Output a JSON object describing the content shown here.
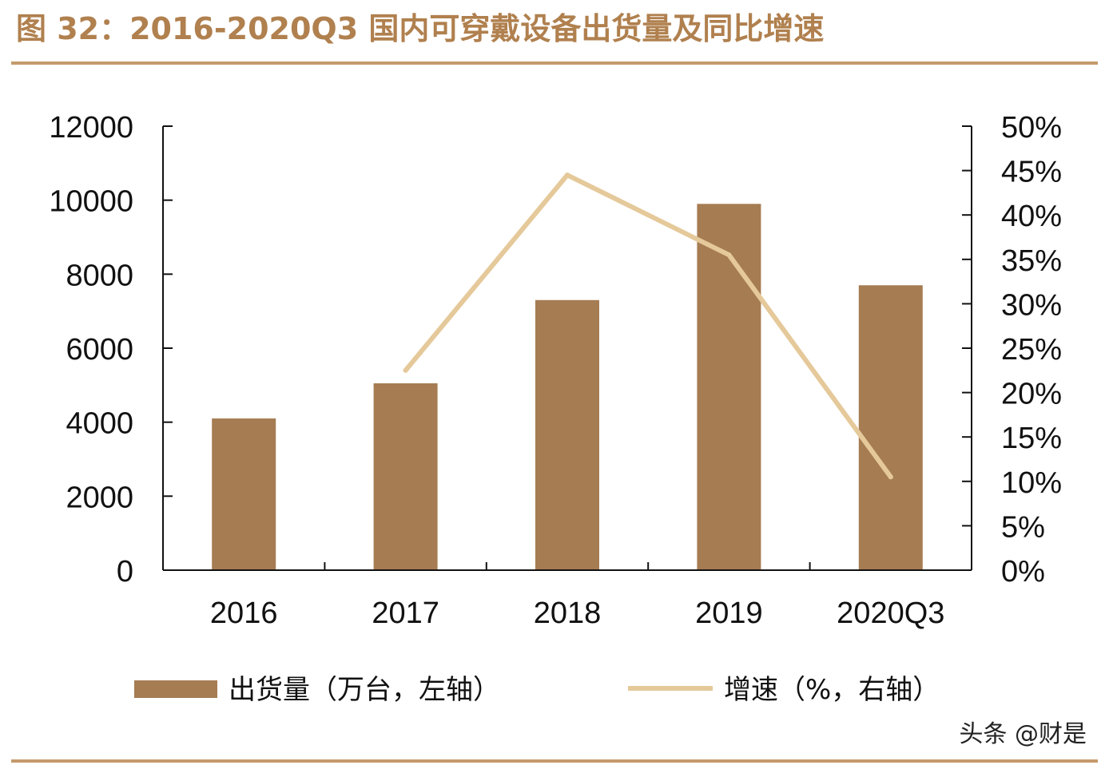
{
  "title": "图 32：2016-2020Q3 国内可穿戴设备出货量及同比增速",
  "watermark": "头条 @财是",
  "colors": {
    "bar": "#a67c52",
    "line": "#e5c99a",
    "title": "#b0804e",
    "rule": "#c49a6c",
    "axis": "#111111"
  },
  "chart_data": {
    "type": "bar",
    "categories": [
      "2016",
      "2017",
      "2018",
      "2019",
      "2020Q3"
    ],
    "series": [
      {
        "name": "出货量（万台，左轴）",
        "type": "bar",
        "axis": "left",
        "values": [
          4100,
          5050,
          7300,
          9900,
          7700
        ]
      },
      {
        "name": "增速（%，右轴）",
        "type": "line",
        "axis": "right",
        "values": [
          null,
          22.5,
          44.5,
          35.5,
          10.5
        ]
      }
    ],
    "y_left": {
      "ylim": [
        0,
        12000
      ],
      "ticks": [
        "0",
        "2000",
        "4000",
        "6000",
        "8000",
        "10000",
        "12000"
      ]
    },
    "y_right": {
      "ylim": [
        0,
        50
      ],
      "ticks": [
        "0%",
        "5%",
        "10%",
        "15%",
        "20%",
        "25%",
        "30%",
        "35%",
        "40%",
        "45%",
        "50%"
      ]
    },
    "legend": {
      "placement": "bottom"
    },
    "grid": false
  }
}
